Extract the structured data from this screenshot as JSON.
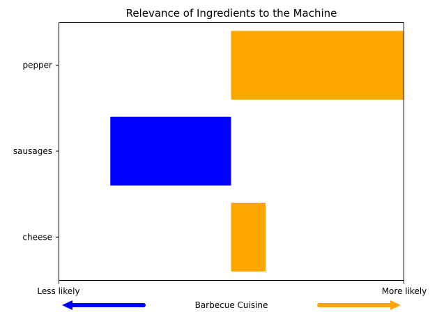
{
  "chart_data": {
    "type": "bar",
    "orientation": "horizontal",
    "title": "Relevance of Ingredients to the Machine",
    "xlabel": "Barbecue Cuisine",
    "ylabel": "",
    "categories": [
      "pepper",
      "sausages",
      "cheese"
    ],
    "values": [
      1.0,
      -0.7,
      0.2
    ],
    "xlim": [
      -1,
      1
    ],
    "x_endpoint_labels": {
      "left": "Less likely",
      "right": "More likely"
    },
    "grid": false,
    "colors": {
      "positive": "#FFA500",
      "negative": "#0000FF"
    },
    "arrows": [
      {
        "direction": "left",
        "color": "#0000FF"
      },
      {
        "direction": "right",
        "color": "#FFA500"
      }
    ]
  }
}
